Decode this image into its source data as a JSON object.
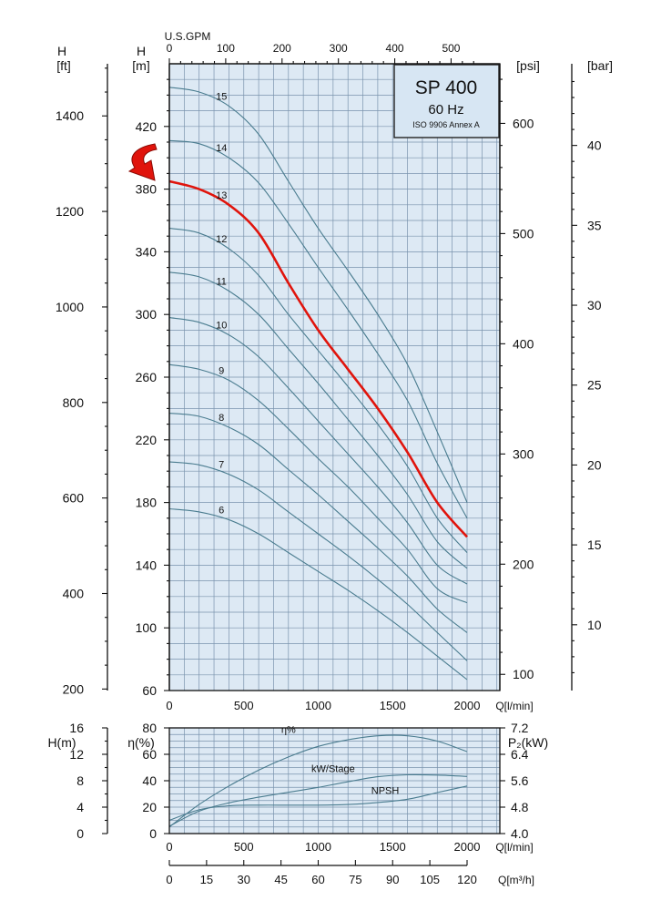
{
  "title": {
    "model": "SP 400",
    "frequency": "60 Hz",
    "standard": "ISO 9906 Annex A"
  },
  "colors": {
    "plot_bg": "#dde9f4",
    "grid": "#7a93ad",
    "curve": "#4a7c8f",
    "highlight": "#e0140c",
    "arrow": "#e0140c"
  },
  "axes": {
    "top_gpm": {
      "label": "U.S.GPM",
      "ticks": [
        "0",
        "100",
        "200",
        "300",
        "400",
        "500"
      ],
      "values": [
        0,
        100,
        200,
        300,
        400,
        500
      ]
    },
    "h_ft": {
      "label1": "H",
      "label2": "[ft]",
      "ticks": [
        "1400",
        "1200",
        "1000",
        "800",
        "600",
        "400",
        "200"
      ],
      "values": [
        1400,
        1200,
        1000,
        800,
        600,
        400,
        200
      ]
    },
    "h_m": {
      "label1": "H",
      "label2": "[m]",
      "ticks": [
        "420",
        "380",
        "340",
        "300",
        "260",
        "220",
        "180",
        "140",
        "100",
        "60"
      ],
      "values": [
        420,
        380,
        340,
        300,
        260,
        220,
        180,
        140,
        100,
        60
      ]
    },
    "psi": {
      "label": "[psi]",
      "ticks": [
        "600",
        "500",
        "400",
        "300",
        "200",
        "100"
      ],
      "values": [
        600,
        500,
        400,
        300,
        200,
        100
      ]
    },
    "bar": {
      "label": "[bar]",
      "ticks": [
        "40",
        "35",
        "30",
        "25",
        "20",
        "15",
        "10"
      ],
      "values": [
        40,
        35,
        30,
        25,
        20,
        15,
        10
      ]
    },
    "q_lmin": {
      "label": "Q[l/min]",
      "ticks": [
        "0",
        "500",
        "1000",
        "1500",
        "2000"
      ],
      "values": [
        0,
        500,
        1000,
        1500,
        2000
      ]
    },
    "npsh_h": {
      "label1": "H(m)",
      "ticks": [
        "16",
        "12",
        "8",
        "4",
        "0"
      ],
      "values": [
        16,
        12,
        8,
        4,
        0
      ]
    },
    "eta": {
      "label": "η(%)",
      "ticks": [
        "80",
        "60",
        "40",
        "20",
        "0"
      ],
      "values": [
        80,
        60,
        40,
        20,
        0
      ]
    },
    "p2": {
      "label": "P₂(kW)",
      "ticks": [
        "7.2",
        "6.4",
        "5.6",
        "4.8",
        "4.0"
      ],
      "values": [
        7.2,
        6.4,
        5.6,
        4.8,
        4.0
      ]
    },
    "q_lmin_bottom": {
      "label": "Q[l/min]",
      "ticks": [
        "0",
        "500",
        "1000",
        "1500",
        "2000"
      ],
      "values": [
        0,
        500,
        1000,
        1500,
        2000
      ]
    },
    "q_m3h": {
      "label": "Q[m³/h]",
      "ticks": [
        "0",
        "15",
        "30",
        "45",
        "60",
        "75",
        "90",
        "105",
        "120"
      ],
      "values": [
        0,
        15,
        30,
        45,
        60,
        75,
        90,
        105,
        120
      ]
    }
  },
  "chart_data": [
    {
      "type": "line",
      "title": "SP 400 60 Hz",
      "xlabel": "Q[l/min]",
      "ylabel": "H [m]",
      "xlim": [
        0,
        2000
      ],
      "ylim": [
        60,
        460
      ],
      "grid": true,
      "highlighted_series": "13",
      "x": [
        0,
        200,
        400,
        600,
        800,
        1000,
        1200,
        1400,
        1600,
        1800,
        2000
      ],
      "series": [
        {
          "name": "15",
          "values": [
            445,
            442,
            433,
            415,
            385,
            355,
            328,
            300,
            268,
            225,
            180
          ]
        },
        {
          "name": "14",
          "values": [
            411,
            409,
            400,
            384,
            358,
            330,
            303,
            275,
            245,
            205,
            170
          ]
        },
        {
          "name": "13",
          "values": [
            385,
            380,
            370,
            352,
            320,
            290,
            265,
            240,
            212,
            180,
            158
          ]
        },
        {
          "name": "12",
          "values": [
            355,
            352,
            342,
            325,
            300,
            277,
            254,
            230,
            203,
            170,
            148
          ]
        },
        {
          "name": "11",
          "values": [
            327,
            324,
            315,
            300,
            278,
            256,
            233,
            210,
            185,
            155,
            138
          ]
        },
        {
          "name": "10",
          "values": [
            298,
            295,
            287,
            273,
            253,
            232,
            211,
            190,
            167,
            140,
            128
          ]
        },
        {
          "name": "9",
          "values": [
            268,
            265,
            258,
            245,
            227,
            208,
            190,
            170,
            150,
            125,
            116
          ]
        },
        {
          "name": "8",
          "values": [
            237,
            235,
            228,
            217,
            201,
            185,
            168,
            151,
            133,
            112,
            97
          ]
        },
        {
          "name": "7",
          "values": [
            206,
            204,
            198,
            188,
            174,
            160,
            146,
            131,
            115,
            97,
            79
          ]
        },
        {
          "name": "6",
          "values": [
            176,
            174,
            169,
            160,
            148,
            136,
            124,
            111,
            97,
            82,
            67
          ]
        }
      ]
    },
    {
      "type": "line",
      "xlabel": "Q[l/min]",
      "xlim": [
        0,
        2000
      ],
      "grid": true,
      "x": [
        0,
        200,
        400,
        600,
        800,
        1000,
        1200,
        1400,
        1600,
        1800,
        2000
      ],
      "series": [
        {
          "name": "η%",
          "axis": "η(%)",
          "ylim": [
            0,
            80
          ],
          "values": [
            5,
            22,
            36,
            48,
            58,
            66,
            71,
            74,
            74,
            70,
            62
          ]
        },
        {
          "name": "kW/Stage",
          "axis": "P₂(kW)",
          "ylim": [
            4.0,
            7.2
          ],
          "values": [
            4.22,
            4.68,
            4.93,
            5.1,
            5.25,
            5.4,
            5.57,
            5.72,
            5.78,
            5.77,
            5.73
          ]
        },
        {
          "name": "NPSH",
          "axis": "H(m)",
          "ylim": [
            0,
            16
          ],
          "values": [
            2.0,
            3.6,
            4.2,
            4.3,
            4.3,
            4.3,
            4.4,
            4.7,
            5.2,
            6.2,
            7.2
          ]
        }
      ]
    }
  ]
}
